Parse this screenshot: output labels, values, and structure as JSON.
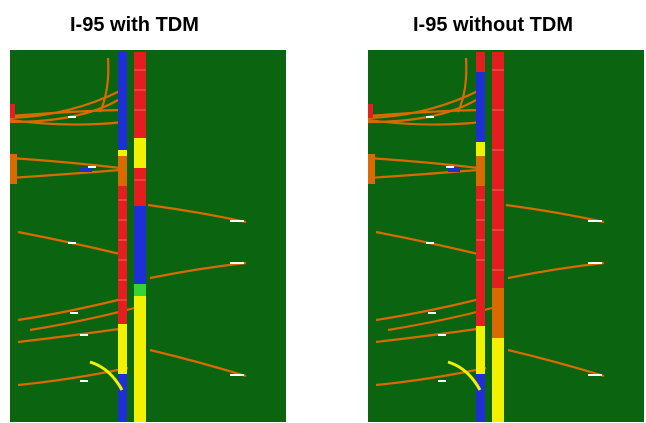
{
  "panels": [
    {
      "title": "I-95 with TDM"
    },
    {
      "title": "I-95 without TDM"
    }
  ],
  "colors": {
    "background": "#0a6410",
    "congested_red": "#e41e1e",
    "free_flow_blue": "#1f2fd6",
    "moderate_yellow": "#f2f200",
    "light_green": "#33d433",
    "ramp_orange": "#d96a00",
    "highlight_white": "#ffffff"
  }
}
